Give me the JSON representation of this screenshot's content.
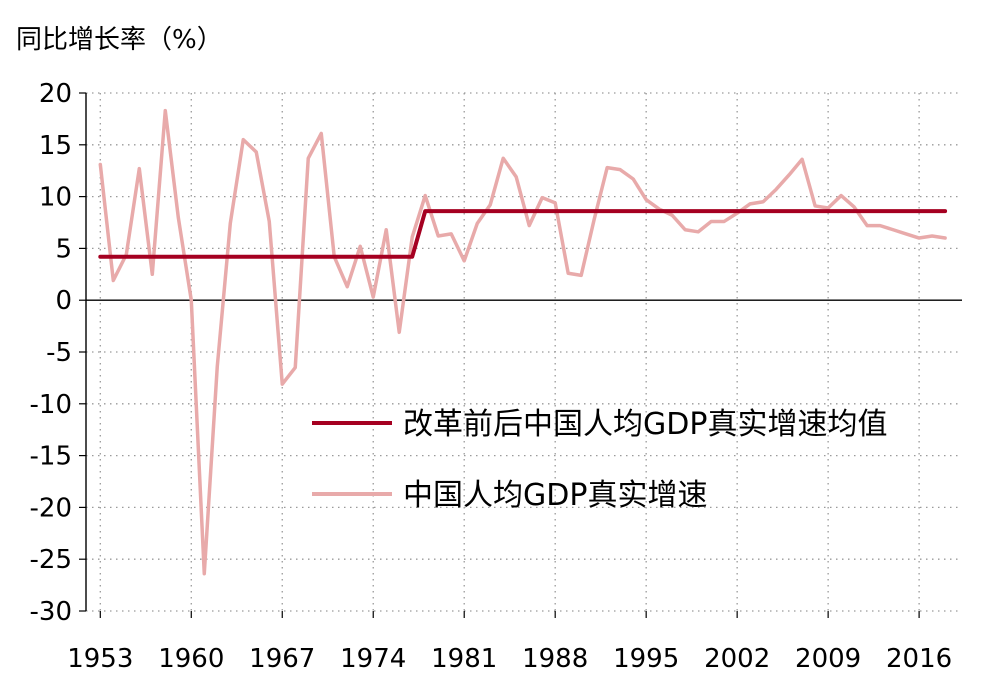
{
  "chart_data": {
    "type": "line",
    "ylabel": "同比增长率（%）",
    "ylim": [
      -30,
      20
    ],
    "yticks": [
      20,
      15,
      10,
      5,
      0,
      -5,
      -10,
      -15,
      -20,
      -25,
      -30
    ],
    "xlim": [
      1953,
      2019
    ],
    "xticks": [
      1953,
      1960,
      1967,
      1974,
      1981,
      1988,
      1995,
      2002,
      2009,
      2016
    ],
    "grid": "dotted",
    "legend_position": "center-right",
    "series": [
      {
        "name": "改革前后中国人均GDP真实增速均值",
        "color": "#A50021",
        "points": [
          [
            1953,
            4.2
          ],
          [
            1977,
            4.2
          ],
          [
            1978,
            8.6
          ],
          [
            2018,
            8.6
          ]
        ]
      },
      {
        "name": "中国人均GDP真实增速",
        "color": "#E8AAAA",
        "points": [
          [
            1953,
            13.1
          ],
          [
            1954,
            1.9
          ],
          [
            1955,
            4.4
          ],
          [
            1956,
            12.7
          ],
          [
            1957,
            2.5
          ],
          [
            1958,
            18.3
          ],
          [
            1959,
            8.0
          ],
          [
            1960,
            0.0
          ],
          [
            1961,
            -26.4
          ],
          [
            1962,
            -6.4
          ],
          [
            1963,
            7.4
          ],
          [
            1964,
            15.5
          ],
          [
            1965,
            14.3
          ],
          [
            1966,
            7.6
          ],
          [
            1967,
            -8.1
          ],
          [
            1968,
            -6.5
          ],
          [
            1969,
            13.7
          ],
          [
            1970,
            16.1
          ],
          [
            1971,
            4.2
          ],
          [
            1972,
            1.3
          ],
          [
            1973,
            5.2
          ],
          [
            1974,
            0.3
          ],
          [
            1975,
            6.8
          ],
          [
            1976,
            -3.1
          ],
          [
            1977,
            6.1
          ],
          [
            1978,
            10.1
          ],
          [
            1979,
            6.2
          ],
          [
            1980,
            6.4
          ],
          [
            1981,
            3.8
          ],
          [
            1982,
            7.4
          ],
          [
            1983,
            9.2
          ],
          [
            1984,
            13.7
          ],
          [
            1985,
            11.9
          ],
          [
            1986,
            7.2
          ],
          [
            1987,
            9.9
          ],
          [
            1988,
            9.4
          ],
          [
            1989,
            2.6
          ],
          [
            1990,
            2.4
          ],
          [
            1991,
            7.8
          ],
          [
            1992,
            12.8
          ],
          [
            1993,
            12.6
          ],
          [
            1994,
            11.7
          ],
          [
            1995,
            9.7
          ],
          [
            1996,
            8.8
          ],
          [
            1997,
            8.2
          ],
          [
            1998,
            6.8
          ],
          [
            1999,
            6.6
          ],
          [
            2000,
            7.6
          ],
          [
            2001,
            7.6
          ],
          [
            2002,
            8.4
          ],
          [
            2003,
            9.3
          ],
          [
            2004,
            9.5
          ],
          [
            2005,
            10.7
          ],
          [
            2006,
            12.1
          ],
          [
            2007,
            13.6
          ],
          [
            2008,
            9.1
          ],
          [
            2009,
            8.9
          ],
          [
            2010,
            10.1
          ],
          [
            2011,
            9.0
          ],
          [
            2012,
            7.2
          ],
          [
            2013,
            7.2
          ],
          [
            2014,
            6.8
          ],
          [
            2015,
            6.4
          ],
          [
            2016,
            6.0
          ],
          [
            2017,
            6.2
          ],
          [
            2018,
            6.0
          ]
        ]
      }
    ]
  }
}
